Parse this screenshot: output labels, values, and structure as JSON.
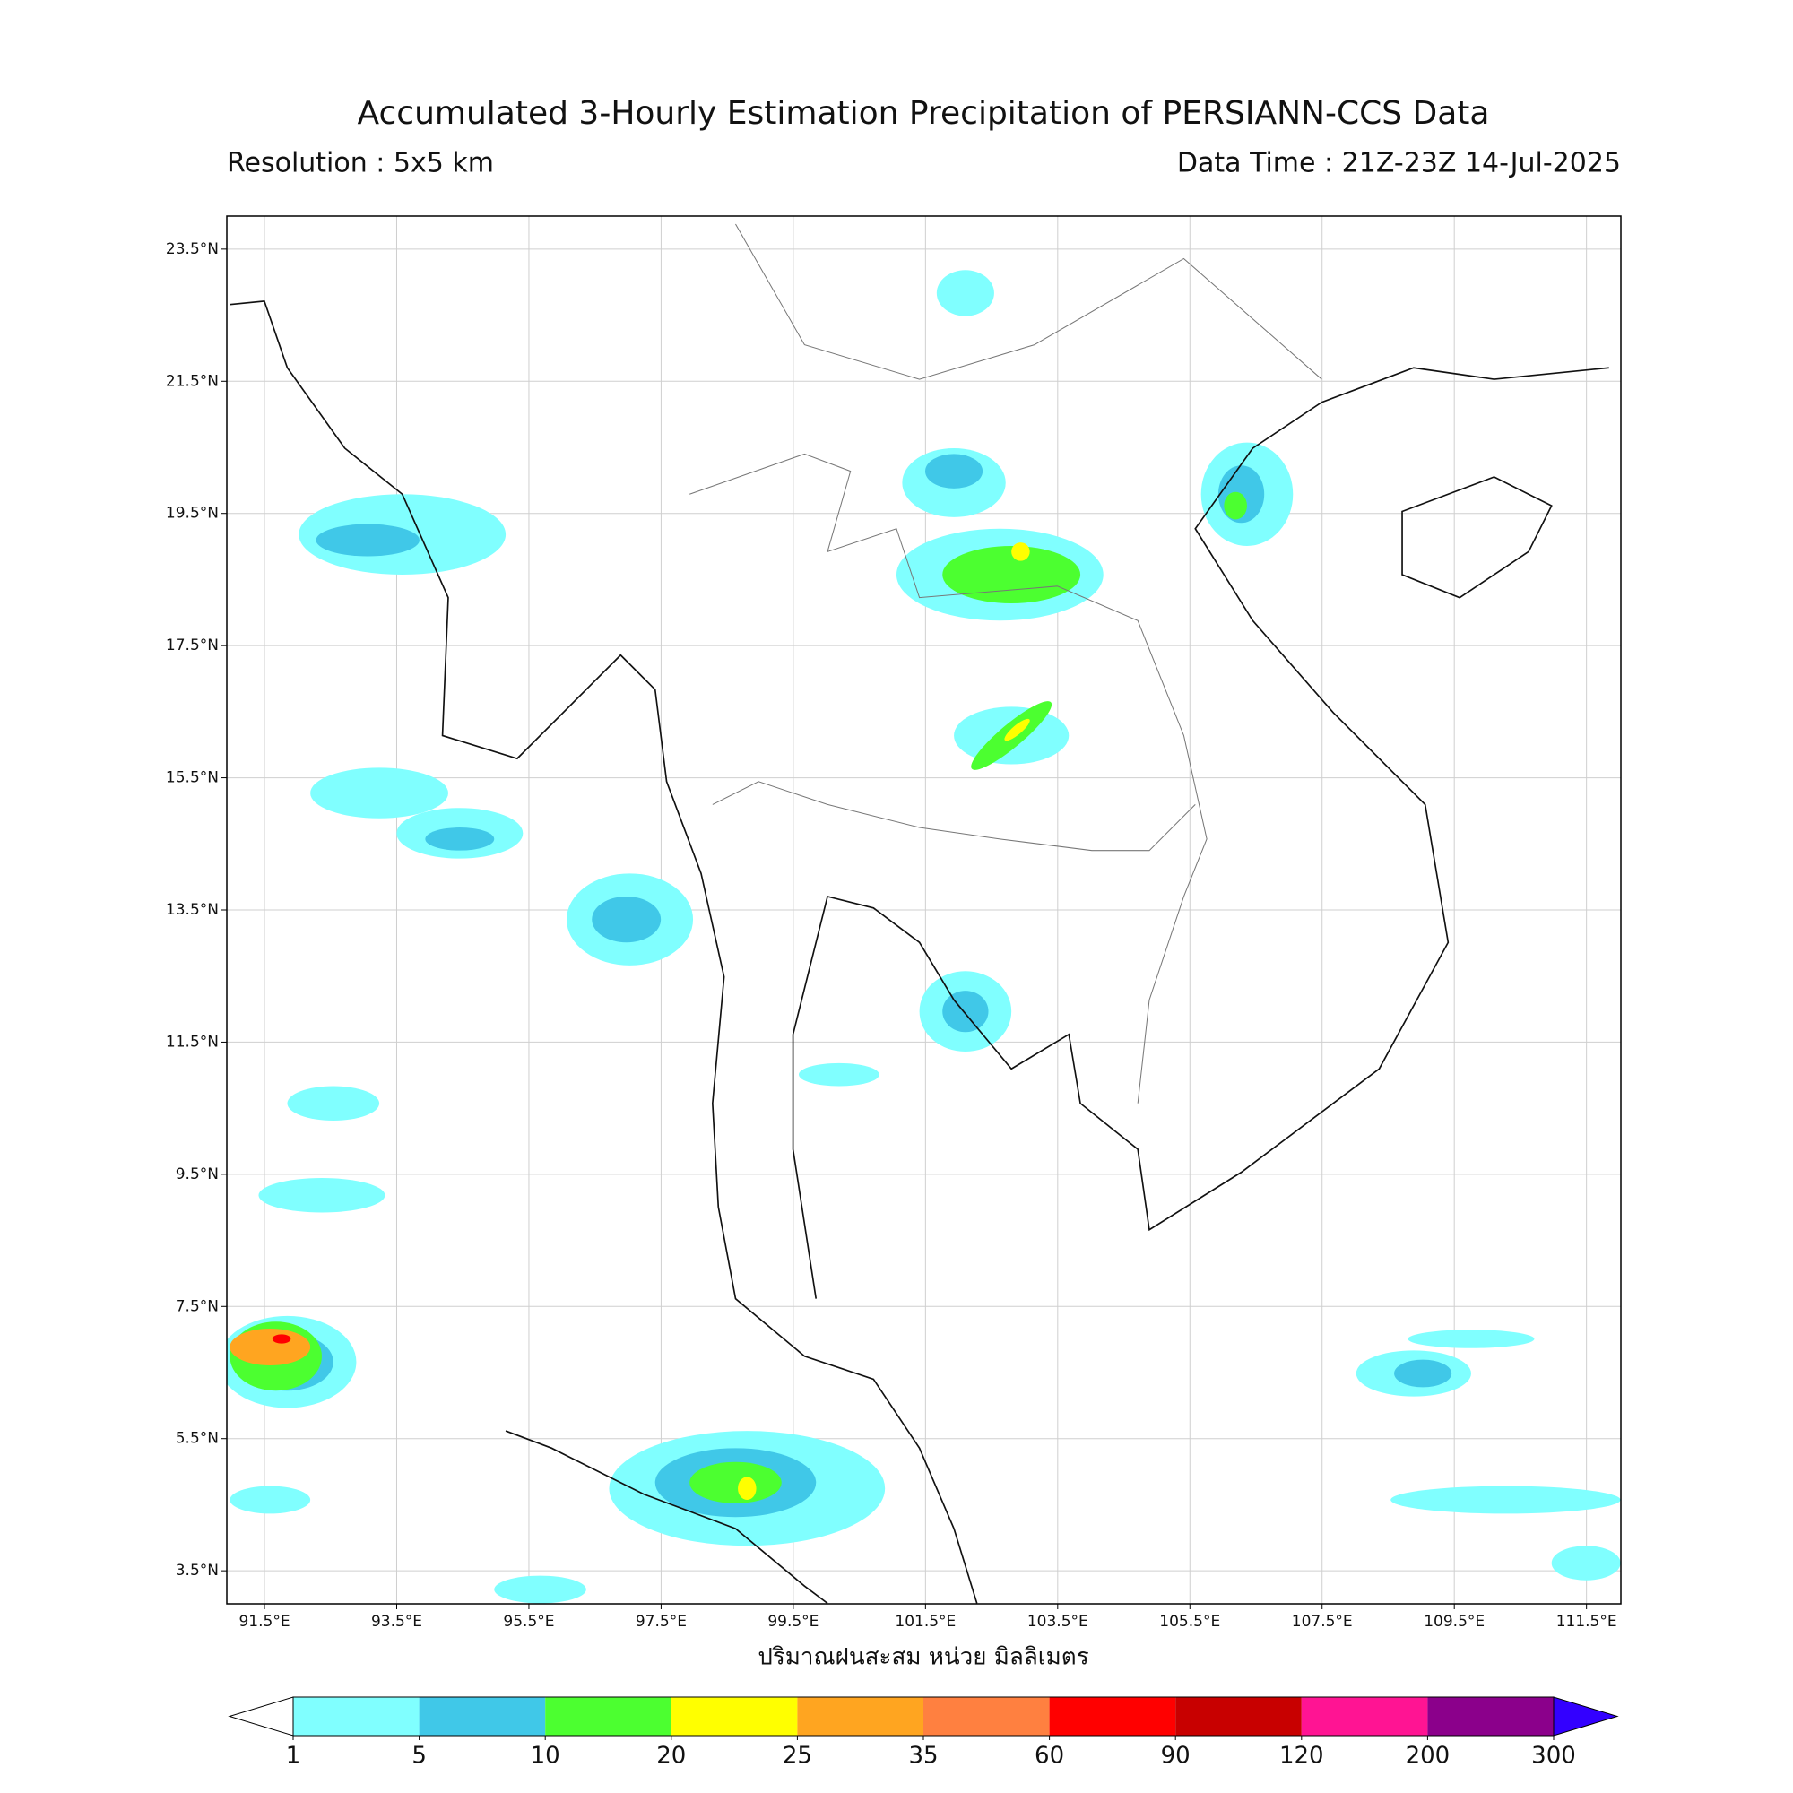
{
  "title": "Accumulated 3-Hourly Estimation Precipitation of PERSIANN-CCS Data",
  "subtitle_left": "Resolution : 5x5 km",
  "subtitle_right": "Data Time : 21Z-23Z 14-Jul-2025",
  "map": {
    "xlim": [
      90.93,
      112.02
    ],
    "ylim": [
      3.0,
      24.0
    ],
    "grid": true,
    "xticks": [
      {
        "value": 91.5,
        "label": "91.5°E"
      },
      {
        "value": 93.5,
        "label": "93.5°E"
      },
      {
        "value": 95.5,
        "label": "95.5°E"
      },
      {
        "value": 97.5,
        "label": "97.5°E"
      },
      {
        "value": 99.5,
        "label": "99.5°E"
      },
      {
        "value": 101.5,
        "label": "101.5°E"
      },
      {
        "value": 103.5,
        "label": "103.5°E"
      },
      {
        "value": 105.5,
        "label": "105.5°E"
      },
      {
        "value": 107.5,
        "label": "107.5°E"
      },
      {
        "value": 109.5,
        "label": "109.5°E"
      },
      {
        "value": 111.5,
        "label": "111.5°E"
      }
    ],
    "yticks": [
      {
        "value": 3.5,
        "label": "3.5°N"
      },
      {
        "value": 5.5,
        "label": "5.5°N"
      },
      {
        "value": 7.5,
        "label": "7.5°N"
      },
      {
        "value": 9.5,
        "label": "9.5°N"
      },
      {
        "value": 11.5,
        "label": "11.5°N"
      },
      {
        "value": 13.5,
        "label": "13.5°N"
      },
      {
        "value": 15.5,
        "label": "15.5°N"
      },
      {
        "value": 17.5,
        "label": "17.5°N"
      },
      {
        "value": 19.5,
        "label": "19.5°N"
      },
      {
        "value": 21.5,
        "label": "21.5°N"
      },
      {
        "value": 23.5,
        "label": "23.5°N"
      }
    ],
    "xlabel": "ปริมาณฝนสะสม หน่วย มิลลิเมตร"
  },
  "colorbar": {
    "levels": [
      1,
      5,
      10,
      20,
      25,
      35,
      60,
      90,
      120,
      200,
      300
    ],
    "colors": [
      "#80ffff",
      "#40c8e8",
      "#4cff30",
      "#ffff00",
      "#ffa520",
      "#ff8040",
      "#ff0000",
      "#c80000",
      "#ff1493",
      "#8b008b"
    ],
    "under_color": "#ffffff",
    "over_color": "#3300ff"
  }
}
